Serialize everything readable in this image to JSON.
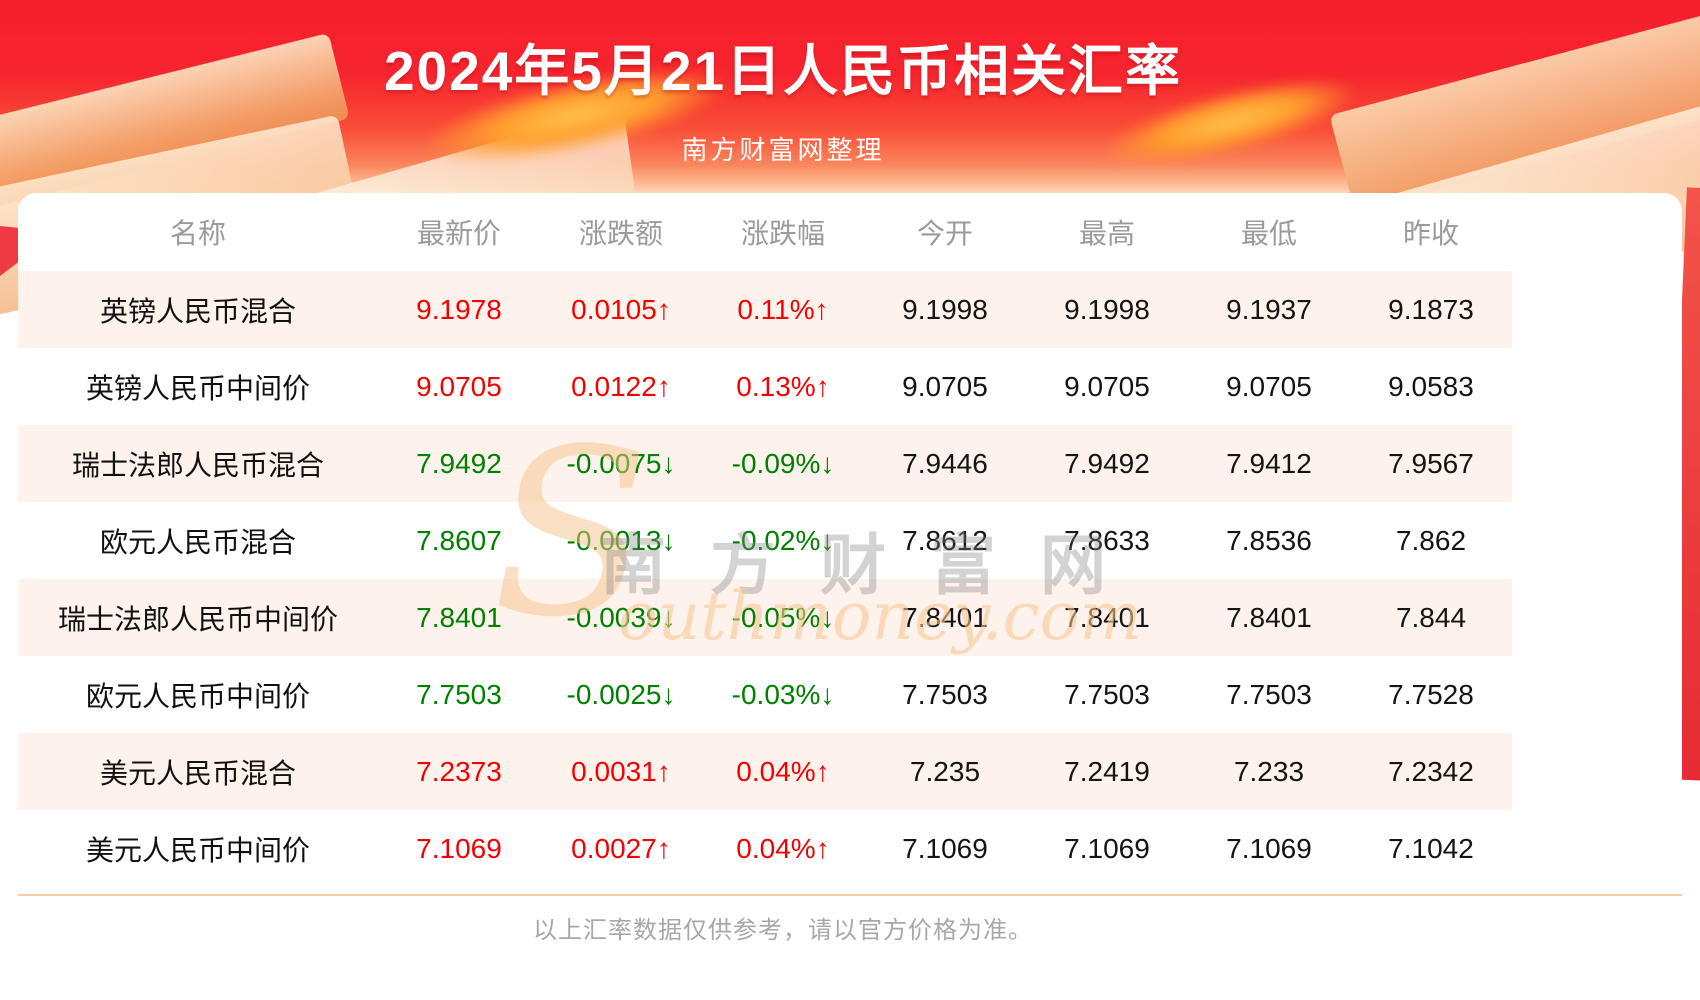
{
  "header": {
    "title": "2024年5月21日人民币相关汇率",
    "subtitle": "南方财富网整理"
  },
  "watermark": {
    "initial": "S",
    "cn_text": "南方财富网",
    "en_text": "outhmoney.com"
  },
  "footer": {
    "note": "以上汇率数据仅供参考，请以官方价格为准。"
  },
  "colors": {
    "up_red": "#f40000",
    "down_green": "#008000",
    "banner_red": "#f51f2b",
    "row_alt_peach": "#fdf2ec",
    "divider_orange": "#f6cfa5"
  },
  "chart_data": {
    "type": "table",
    "title": "2024年5月21日人民币相关汇率",
    "source": "南方财富网整理",
    "columns": [
      "名称",
      "最新价",
      "涨跌额",
      "涨跌幅",
      "今开",
      "最高",
      "最低",
      "昨收"
    ],
    "rows": [
      {
        "name": "英镑人民币混合",
        "latest": "9.1978",
        "change": "0.0105",
        "change_pct": "0.11%",
        "trend": "up",
        "open": "9.1998",
        "high": "9.1998",
        "low": "9.1937",
        "prev_close": "9.1873"
      },
      {
        "name": "英镑人民币中间价",
        "latest": "9.0705",
        "change": "0.0122",
        "change_pct": "0.13%",
        "trend": "up",
        "open": "9.0705",
        "high": "9.0705",
        "low": "9.0705",
        "prev_close": "9.0583"
      },
      {
        "name": "瑞士法郎人民币混合",
        "latest": "7.9492",
        "change": "-0.0075",
        "change_pct": "-0.09%",
        "trend": "down",
        "open": "7.9446",
        "high": "7.9492",
        "low": "7.9412",
        "prev_close": "7.9567"
      },
      {
        "name": "欧元人民币混合",
        "latest": "7.8607",
        "change": "-0.0013",
        "change_pct": "-0.02%",
        "trend": "down",
        "open": "7.8612",
        "high": "7.8633",
        "low": "7.8536",
        "prev_close": "7.862"
      },
      {
        "name": "瑞士法郎人民币中间价",
        "latest": "7.8401",
        "change": "-0.0039",
        "change_pct": "-0.05%",
        "trend": "down",
        "open": "7.8401",
        "high": "7.8401",
        "low": "7.8401",
        "prev_close": "7.844"
      },
      {
        "name": "欧元人民币中间价",
        "latest": "7.7503",
        "change": "-0.0025",
        "change_pct": "-0.03%",
        "trend": "down",
        "open": "7.7503",
        "high": "7.7503",
        "low": "7.7503",
        "prev_close": "7.7528"
      },
      {
        "name": "美元人民币混合",
        "latest": "7.2373",
        "change": "0.0031",
        "change_pct": "0.04%",
        "trend": "up",
        "open": "7.235",
        "high": "7.2419",
        "low": "7.233",
        "prev_close": "7.2342"
      },
      {
        "name": "美元人民币中间价",
        "latest": "7.1069",
        "change": "0.0027",
        "change_pct": "0.04%",
        "trend": "up",
        "open": "7.1069",
        "high": "7.1069",
        "low": "7.1069",
        "prev_close": "7.1042"
      }
    ],
    "legend": "none",
    "grid": "off",
    "arrow_up_glyph": "↑",
    "arrow_down_glyph": "↓"
  }
}
